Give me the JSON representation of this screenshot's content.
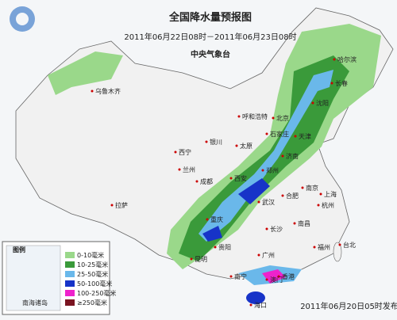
{
  "header": {
    "title": "全国降水量预报图",
    "period": "2011年06月22日08时－2011年06月23日08时",
    "agency": "中央气象台"
  },
  "legend": {
    "title": "图例",
    "items": [
      {
        "label": "0-10毫米",
        "color": "#9ad88a"
      },
      {
        "label": "10-25毫米",
        "color": "#3a9a3a"
      },
      {
        "label": "25-50毫米",
        "color": "#6ab8ea"
      },
      {
        "label": "50-100毫米",
        "color": "#1733c8"
      },
      {
        "label": "100-250毫米",
        "color": "#ee22cc"
      },
      {
        "label": "≥250毫米",
        "color": "#7a1420"
      }
    ],
    "inset_label": "南海诸岛"
  },
  "cities": [
    "乌鲁木齐",
    "哈尔滨",
    "长春",
    "沈阳",
    "呼和浩特",
    "北京",
    "天津",
    "石家庄",
    "太原",
    "银川",
    "西宁",
    "兰州",
    "济南",
    "郑州",
    "西安",
    "拉萨",
    "成都",
    "重庆",
    "武汉",
    "合肥",
    "南京",
    "上海",
    "杭州",
    "长沙",
    "南昌",
    "福州",
    "贵阳",
    "昆明",
    "南宁",
    "广州",
    "香港",
    "台北",
    "海口",
    "澳门"
  ],
  "footer": {
    "issued": "2011年06月20日05时发布"
  }
}
